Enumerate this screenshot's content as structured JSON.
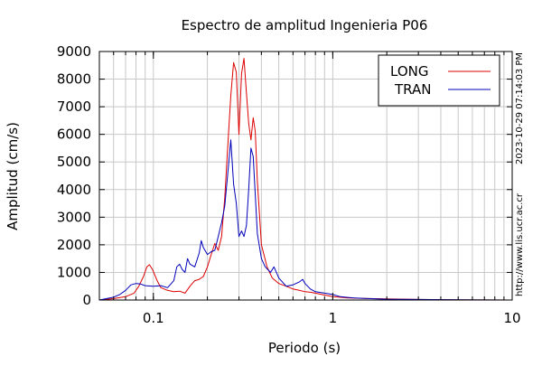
{
  "chart_data": {
    "type": "line",
    "title": "Espectro de amplitud Ingenieria P06",
    "xlabel": "Periodo (s)",
    "ylabel": "Amplitud (cm/s)",
    "x_scale": "log",
    "xlim": [
      0.05,
      10
    ],
    "ylim": [
      0,
      9000
    ],
    "x_ticks": [
      {
        "value": 0.1,
        "label": "0.1"
      },
      {
        "value": 1,
        "label": "1"
      },
      {
        "value": 10,
        "label": "10"
      }
    ],
    "y_ticks": [
      0,
      1000,
      2000,
      3000,
      4000,
      5000,
      6000,
      7000,
      8000,
      9000
    ],
    "grid": true,
    "legend_position": "top-right",
    "series": [
      {
        "name": "LONG",
        "color": "#dd0000",
        "points": [
          [
            0.05,
            0
          ],
          [
            0.06,
            50
          ],
          [
            0.07,
            120
          ],
          [
            0.078,
            250
          ],
          [
            0.083,
            500
          ],
          [
            0.088,
            850
          ],
          [
            0.092,
            1200
          ],
          [
            0.095,
            1280
          ],
          [
            0.099,
            1100
          ],
          [
            0.105,
            700
          ],
          [
            0.11,
            450
          ],
          [
            0.12,
            350
          ],
          [
            0.13,
            300
          ],
          [
            0.14,
            320
          ],
          [
            0.15,
            250
          ],
          [
            0.16,
            500
          ],
          [
            0.17,
            700
          ],
          [
            0.18,
            750
          ],
          [
            0.19,
            850
          ],
          [
            0.2,
            1200
          ],
          [
            0.21,
            1650
          ],
          [
            0.22,
            2050
          ],
          [
            0.23,
            1800
          ],
          [
            0.24,
            2300
          ],
          [
            0.25,
            3700
          ],
          [
            0.26,
            5600
          ],
          [
            0.27,
            7400
          ],
          [
            0.28,
            8600
          ],
          [
            0.29,
            8250
          ],
          [
            0.3,
            6000
          ],
          [
            0.31,
            8200
          ],
          [
            0.32,
            8750
          ],
          [
            0.33,
            7500
          ],
          [
            0.34,
            6400
          ],
          [
            0.35,
            5800
          ],
          [
            0.36,
            6600
          ],
          [
            0.37,
            6100
          ],
          [
            0.38,
            4300
          ],
          [
            0.4,
            2000
          ],
          [
            0.43,
            1200
          ],
          [
            0.46,
            800
          ],
          [
            0.5,
            600
          ],
          [
            0.55,
            500
          ],
          [
            0.6,
            400
          ],
          [
            0.65,
            350
          ],
          [
            0.7,
            300
          ],
          [
            0.75,
            280
          ],
          [
            0.8,
            250
          ],
          [
            0.9,
            180
          ],
          [
            1.0,
            120
          ],
          [
            1.2,
            80
          ],
          [
            1.5,
            60
          ],
          [
            2.0,
            40
          ],
          [
            3.0,
            20
          ],
          [
            5.0,
            10
          ],
          [
            10.0,
            0
          ]
        ]
      },
      {
        "name": "TRAN",
        "color": "#0000bb",
        "points": [
          [
            0.05,
            0
          ],
          [
            0.06,
            100
          ],
          [
            0.065,
            200
          ],
          [
            0.07,
            350
          ],
          [
            0.075,
            550
          ],
          [
            0.08,
            600
          ],
          [
            0.085,
            580
          ],
          [
            0.09,
            520
          ],
          [
            0.1,
            500
          ],
          [
            0.11,
            520
          ],
          [
            0.12,
            450
          ],
          [
            0.13,
            700
          ],
          [
            0.135,
            1200
          ],
          [
            0.14,
            1300
          ],
          [
            0.145,
            1100
          ],
          [
            0.15,
            1000
          ],
          [
            0.155,
            1500
          ],
          [
            0.16,
            1300
          ],
          [
            0.17,
            1200
          ],
          [
            0.18,
            1700
          ],
          [
            0.185,
            2150
          ],
          [
            0.19,
            1900
          ],
          [
            0.2,
            1650
          ],
          [
            0.21,
            1750
          ],
          [
            0.22,
            1800
          ],
          [
            0.23,
            2300
          ],
          [
            0.24,
            2800
          ],
          [
            0.25,
            3400
          ],
          [
            0.26,
            4600
          ],
          [
            0.27,
            5800
          ],
          [
            0.28,
            4200
          ],
          [
            0.29,
            3500
          ],
          [
            0.3,
            2300
          ],
          [
            0.31,
            2500
          ],
          [
            0.32,
            2300
          ],
          [
            0.33,
            2700
          ],
          [
            0.34,
            4000
          ],
          [
            0.35,
            5500
          ],
          [
            0.36,
            5200
          ],
          [
            0.37,
            3800
          ],
          [
            0.38,
            2400
          ],
          [
            0.4,
            1500
          ],
          [
            0.42,
            1200
          ],
          [
            0.45,
            1000
          ],
          [
            0.47,
            1200
          ],
          [
            0.5,
            800
          ],
          [
            0.55,
            500
          ],
          [
            0.6,
            550
          ],
          [
            0.65,
            650
          ],
          [
            0.68,
            750
          ],
          [
            0.7,
            600
          ],
          [
            0.75,
            400
          ],
          [
            0.8,
            300
          ],
          [
            0.9,
            250
          ],
          [
            1.0,
            200
          ],
          [
            1.1,
            120
          ],
          [
            1.3,
            80
          ],
          [
            1.5,
            60
          ],
          [
            2.0,
            30
          ],
          [
            3.0,
            20
          ],
          [
            5.0,
            10
          ],
          [
            10.0,
            0
          ]
        ]
      }
    ],
    "side_annotations": [
      "http://www.lis.ucr.ac.cr",
      "2023-10-29 07:14:03 PM"
    ]
  }
}
